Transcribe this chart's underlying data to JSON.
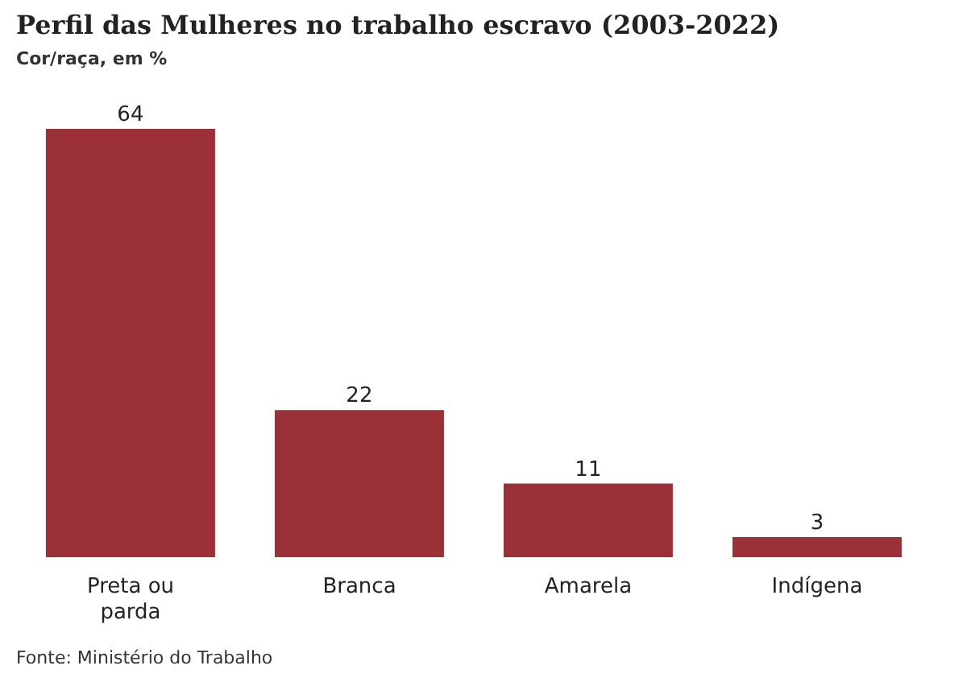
{
  "chart_data": {
    "type": "bar",
    "title": "Perfil das Mulheres no trabalho escravo (2003-2022)",
    "subtitle": "Cor/raça, em %",
    "categories": [
      "Preta ou parda",
      "Branca",
      "Amarela",
      "Indígena"
    ],
    "values": [
      64,
      22,
      11,
      3
    ],
    "color": "#9b3039",
    "data_labels": true,
    "annotations": [
      "Fonte: Ministério do Trabalho"
    ]
  }
}
